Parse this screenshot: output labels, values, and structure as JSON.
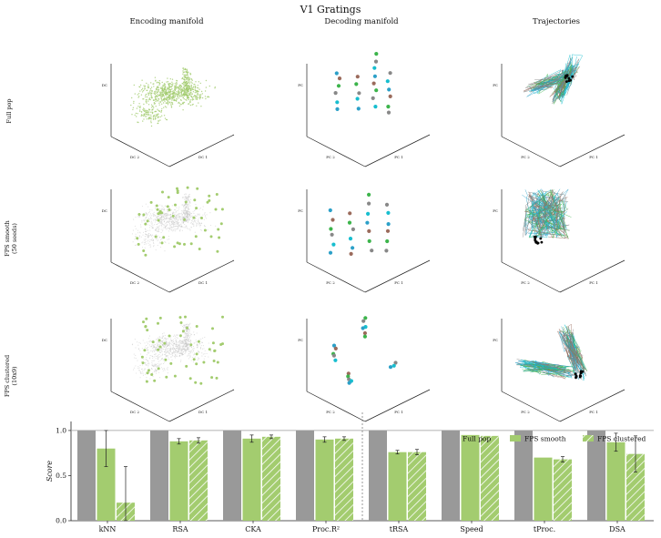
{
  "figure": {
    "title": "V1 Gratings",
    "col_titles": [
      "Encoding manifold",
      "Decoding manifold",
      "Trajectories"
    ],
    "row_labels": [
      [
        "Full pop"
      ],
      [
        "FPS smooth",
        "(50 seeds)"
      ],
      [
        "FPS clustered",
        "(10x9)"
      ]
    ],
    "axis_labels": {
      "encoding": {
        "x": "DC 2",
        "y": "DC 1",
        "z": "DC"
      },
      "decoding": {
        "x": "PC 2",
        "y": "PC 1",
        "z": "PC"
      }
    },
    "colors": {
      "full_pop": "#999999",
      "fps_smooth": "#a3cc6f",
      "encoding_points": "#a3cc6f",
      "encoding_bg": "#bdbdbd",
      "decoding_palette": [
        "#2ca0c8",
        "#9b6b5c",
        "#3cb44b",
        "#888888",
        "#17becf"
      ],
      "traj_palette": [
        "#2ca0c8",
        "#17becf",
        "#3cb44b",
        "#9b6b5c",
        "#7f7f7f"
      ]
    }
  },
  "chart_data": {
    "type": "bar",
    "categories": [
      "kNN",
      "RSA",
      "CKA",
      "Proc.R²",
      "tRSA",
      "Speed",
      "tProc.",
      "DSA"
    ],
    "series": [
      {
        "name": "Full pop",
        "values": [
          1.0,
          1.0,
          1.0,
          1.0,
          1.0,
          1.0,
          1.0,
          1.0
        ],
        "errors": [
          0.01,
          0.01,
          0.01,
          0.01,
          0.01,
          0.01,
          0.01,
          0.01
        ]
      },
      {
        "name": "FPS smooth",
        "values": [
          0.8,
          0.88,
          0.91,
          0.9,
          0.76,
          0.95,
          0.7,
          0.87
        ],
        "errors": [
          0.2,
          0.03,
          0.04,
          0.03,
          0.02,
          0.01,
          0.01,
          0.1
        ]
      },
      {
        "name": "FPS clustered",
        "values": [
          0.2,
          0.89,
          0.93,
          0.91,
          0.76,
          0.94,
          0.68,
          0.74
        ],
        "errors": [
          0.4,
          0.03,
          0.02,
          0.02,
          0.03,
          0.01,
          0.03,
          0.2
        ]
      }
    ],
    "ylabel": "Score",
    "ylim": [
      0,
      1.1
    ],
    "yticks": [
      0.0,
      0.5,
      1.0
    ],
    "reference_line": 1.0,
    "divider_after_index": 3,
    "legend": "top-right",
    "grid": false
  }
}
